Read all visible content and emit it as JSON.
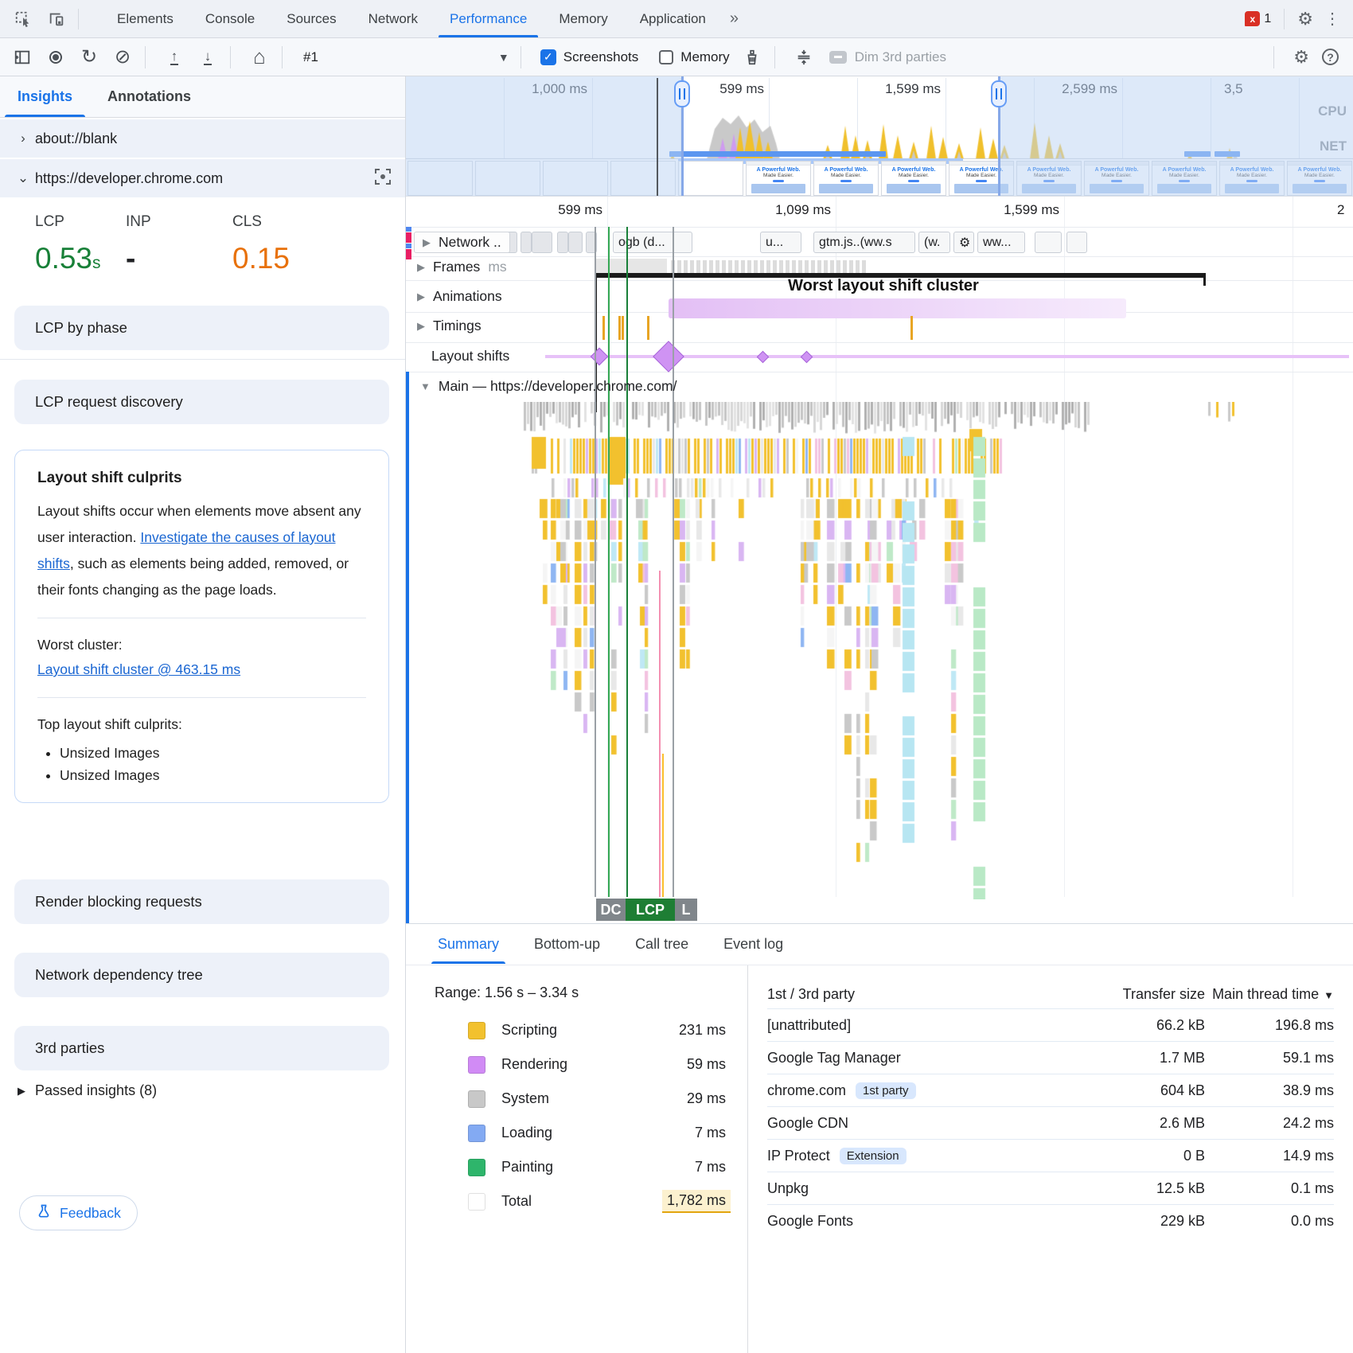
{
  "tabbar": {
    "tabs": [
      {
        "label": "Elements"
      },
      {
        "label": "Console"
      },
      {
        "label": "Sources"
      },
      {
        "label": "Network"
      },
      {
        "label": "Performance",
        "active": true
      },
      {
        "label": "Memory"
      },
      {
        "label": "Application"
      }
    ],
    "more_tabs": "»",
    "error_count": "1"
  },
  "toolbar": {
    "history_label": "#1",
    "screenshots": "Screenshots",
    "memory": "Memory",
    "dim_3rd": "Dim 3rd parties"
  },
  "sidebar": {
    "tabs": [
      {
        "label": "Insights",
        "active": true
      },
      {
        "label": "Annotations"
      }
    ],
    "pages": [
      {
        "chev": "›",
        "url": "about://blank"
      },
      {
        "chev": "⌄",
        "url": "https://developer.chrome.com"
      }
    ],
    "metrics": [
      {
        "label": "LCP",
        "value": "0.53",
        "unit": "s",
        "cls": "good"
      },
      {
        "label": "INP",
        "value": "-",
        "unit": "",
        "cls": "plain"
      },
      {
        "label": "CLS",
        "value": "0.15",
        "unit": "",
        "cls": "warn"
      }
    ],
    "cards_before": [
      "LCP by phase",
      "LCP request discovery"
    ],
    "culprits_card": {
      "title": "Layout shift culprits",
      "body_pre": "Layout shifts occur when elements move absent any user interaction. ",
      "link": "Investigate the causes of layout shifts",
      "body_post": ", such as elements being added, removed, or their fonts changing as the page loads.",
      "worst_label": "Worst cluster:",
      "worst_link": "Layout shift cluster @ 463.15 ms",
      "top_label": "Top layout shift culprits:",
      "items": [
        "Unsized Images",
        "Unsized Images"
      ]
    },
    "cards_after": [
      "Render blocking requests",
      "Network dependency tree",
      "3rd parties"
    ],
    "passed": "Passed insights (8)",
    "feedback": "Feedback"
  },
  "overview": {
    "labels": [
      "1,000 ms",
      "599 ms",
      "1,599 ms",
      "2,599 ms",
      "3,5"
    ],
    "cpu": "CPU",
    "net": "NET",
    "thumb_title": "A Powerful Web.",
    "thumb_sub": "Made Easier."
  },
  "timeline": {
    "ruler": [
      "599 ms",
      "1,099 ms",
      "1,599 ms",
      "2"
    ],
    "network_label": "Network ..",
    "frames_label": "Frames",
    "frames_ms": "ms",
    "animations_label": "Animations",
    "timings_label": "Timings",
    "shifts_label": "Layout shifts",
    "chips": [
      "ogb (d...",
      "u...",
      "gtm.js..(ww.s",
      "(w.",
      "⚙",
      "ww..."
    ],
    "cluster_label": "Worst layout shift cluster",
    "main_label": "Main — https://developer.chrome.com/",
    "badges": [
      {
        "label": "DC",
        "type": "gray"
      },
      {
        "label": "LCP",
        "type": "green"
      },
      {
        "label": "L",
        "type": "gray"
      }
    ]
  },
  "bottom": {
    "tabs": [
      {
        "label": "Summary",
        "active": true
      },
      {
        "label": "Bottom-up"
      },
      {
        "label": "Call tree"
      },
      {
        "label": "Event log"
      }
    ],
    "range": "Range: 1.56 s – 3.34 s",
    "legend": [
      {
        "label": "Scripting",
        "value": "231 ms",
        "color": "#f2c12e"
      },
      {
        "label": "Rendering",
        "value": "59 ms",
        "color": "#d18bf5"
      },
      {
        "label": "System",
        "value": "29 ms",
        "color": "#c8c8c8"
      },
      {
        "label": "Loading",
        "value": "7 ms",
        "color": "#83aaf3"
      },
      {
        "label": "Painting",
        "value": "7 ms",
        "color": "#2eb56b"
      },
      {
        "label": "Total",
        "value": "1,782 ms",
        "color": "#ffffff",
        "total": true
      }
    ],
    "table": {
      "headers": [
        "1st / 3rd party",
        "Transfer size",
        "Main thread time"
      ],
      "sort": "▼",
      "rows": [
        {
          "name": "[unattributed]",
          "size": "66.2 kB",
          "time": "196.8 ms"
        },
        {
          "name": "Google Tag Manager",
          "size": "1.7 MB",
          "time": "59.1 ms"
        },
        {
          "name": "chrome.com",
          "badge": "1st party",
          "size": "604 kB",
          "time": "38.9 ms"
        },
        {
          "name": "Google CDN",
          "size": "2.6 MB",
          "time": "24.2 ms"
        },
        {
          "name": "IP Protect",
          "badge": "Extension",
          "size": "0 B",
          "time": "14.9 ms"
        },
        {
          "name": "Unpkg",
          "size": "12.5 kB",
          "time": "0.1 ms"
        },
        {
          "name": "Google Fonts",
          "size": "229 kB",
          "time": "0.0 ms"
        }
      ]
    }
  }
}
